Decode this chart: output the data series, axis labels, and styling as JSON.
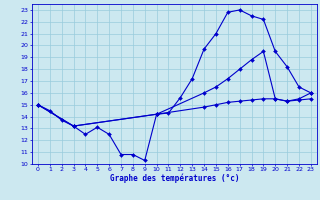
{
  "xlabel": "Graphe des températures (°c)",
  "xlim": [
    -0.5,
    23.5
  ],
  "ylim": [
    10,
    23.5
  ],
  "yticks": [
    10,
    11,
    12,
    13,
    14,
    15,
    16,
    17,
    18,
    19,
    20,
    21,
    22,
    23
  ],
  "xticks": [
    0,
    1,
    2,
    3,
    4,
    5,
    6,
    7,
    8,
    9,
    10,
    11,
    12,
    13,
    14,
    15,
    16,
    17,
    18,
    19,
    20,
    21,
    22,
    23
  ],
  "background_color": "#cce8f0",
  "line_color": "#0000cc",
  "grid_color": "#99ccdd",
  "line1_x": [
    0,
    1,
    2,
    3,
    4,
    5,
    6,
    7,
    8,
    9,
    10,
    11,
    12,
    13,
    14,
    15,
    16,
    17,
    18,
    19,
    20,
    21,
    22,
    23
  ],
  "line1_y": [
    15,
    14.5,
    13.7,
    13.2,
    12.5,
    13.1,
    12.5,
    10.8,
    10.8,
    10.3,
    14.2,
    14.3,
    15.6,
    17.2,
    19.7,
    21.0,
    22.8,
    23.0,
    22.5,
    22.2,
    19.5,
    18.2,
    16.5,
    16.0
  ],
  "line2_x": [
    0,
    3,
    10,
    14,
    15,
    16,
    17,
    18,
    19,
    20,
    21,
    22,
    23
  ],
  "line2_y": [
    15,
    13.2,
    14.2,
    16.0,
    16.5,
    17.2,
    18.0,
    18.8,
    19.5,
    15.5,
    15.3,
    15.5,
    16.0
  ],
  "line3_x": [
    0,
    3,
    10,
    14,
    15,
    16,
    17,
    18,
    19,
    20,
    21,
    22,
    23
  ],
  "line3_y": [
    15,
    13.2,
    14.2,
    14.8,
    15.0,
    15.2,
    15.3,
    15.4,
    15.5,
    15.5,
    15.3,
    15.4,
    15.5
  ]
}
